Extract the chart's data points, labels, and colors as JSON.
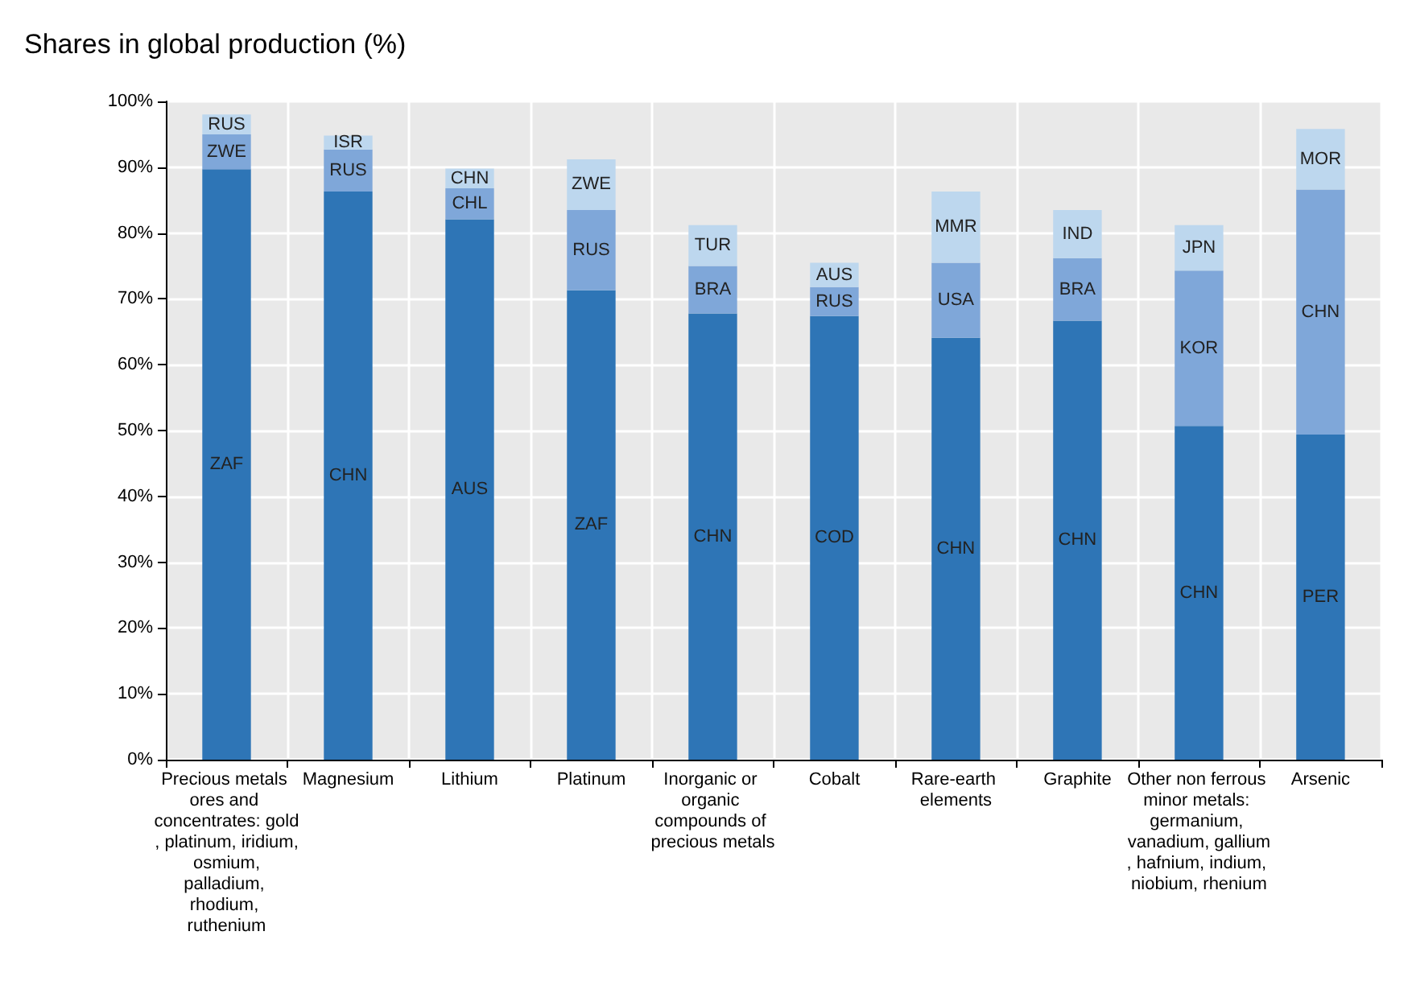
{
  "chart_data": {
    "type": "bar",
    "title": "Shares in global production (%)",
    "stacked": true,
    "grid": true,
    "categories": [
      "Precious metals ores and concentrates: gold, platinum, iridium, osmium, palladium, rhodium, ruthenium",
      "Magnesium",
      "Lithium",
      "Platinum",
      "Inorganic or organic compounds of precious metals",
      "Cobalt",
      "Rare-earth elements",
      "Graphite",
      "Other non ferrous minor metals: germanium, vanadium, gallium, hafnium, indium, niobium, rhenium",
      "Arsenic"
    ],
    "ylim": [
      0,
      100
    ],
    "yticks": [
      {
        "value": 0,
        "label": "0%"
      },
      {
        "value": 10,
        "label": "10%"
      },
      {
        "value": 20,
        "label": "20%"
      },
      {
        "value": 30,
        "label": "30%"
      },
      {
        "value": 40,
        "label": "40%"
      },
      {
        "value": 50,
        "label": "50%"
      },
      {
        "value": 60,
        "label": "60%"
      },
      {
        "value": 70,
        "label": "70%"
      },
      {
        "value": 80,
        "label": "80%"
      },
      {
        "value": 90,
        "label": "90%"
      },
      {
        "value": 100,
        "label": "100%"
      }
    ],
    "series": [
      {
        "color": "#2e75b6",
        "values": [
          89.7,
          86.3,
          82.1,
          71.3,
          67.8,
          67.4,
          64.1,
          66.7,
          50.7,
          49.4
        ],
        "value_labels": [
          "ZAF",
          "CHN",
          "AUS",
          "ZAF",
          "CHN",
          "COD",
          "CHN",
          "CHN",
          "CHN",
          "PER"
        ]
      },
      {
        "color": "#7fa7d9",
        "values": [
          5.3,
          6.4,
          4.7,
          12.2,
          7.2,
          4.4,
          11.4,
          9.5,
          23.6,
          37.2
        ],
        "value_labels": [
          "ZWE",
          "RUS",
          "CHL",
          "RUS",
          "BRA",
          "RUS",
          "USA",
          "BRA",
          "KOR",
          "CHN"
        ]
      },
      {
        "color": "#bdd7ee",
        "values": [
          3,
          2.1,
          3,
          7.7,
          6.2,
          3.7,
          10.8,
          7.3,
          6.9,
          9.2
        ],
        "value_labels": [
          "RUS",
          "ISR",
          "CHN",
          "ZWE",
          "TUR",
          "AUS",
          "MMR",
          "IND",
          "JPN",
          "MOR"
        ]
      }
    ]
  }
}
